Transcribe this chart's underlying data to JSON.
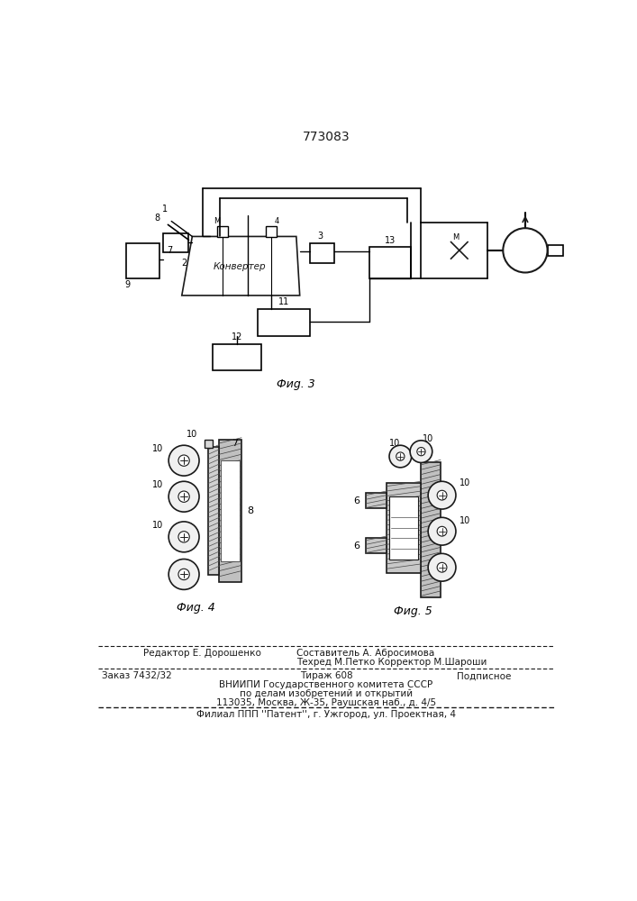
{
  "patent_number": "773083",
  "fig3_label": "Фиg. 3",
  "fig4_label": "Фиg. 4",
  "fig5_label": "Фиg. 5",
  "bg_color": "#ffffff",
  "line_color": "#1a1a1a",
  "text_color": "#1a1a1a",
  "footer_editor": "Редактор Е. Дорошенко",
  "footer_compiler": "Составитель А. Абросимова",
  "footer_tech": "Техред М.Петко Корректор М.Шароши",
  "footer_order": "Заказ 7432/32",
  "footer_tirazh": "Тираж 608",
  "footer_podp": "Подписное",
  "footer_vniip1": "ВНИИПИ Государственного комитета СССР",
  "footer_vniip2": "по делам изобретений и открытий",
  "footer_vniip3": "113035, Москва, Ж-35, Раушская наб., д. 4/5",
  "footer_filial": "Филиал ППП ''Патент'', г. Ужгород, ул. Проектная, 4"
}
